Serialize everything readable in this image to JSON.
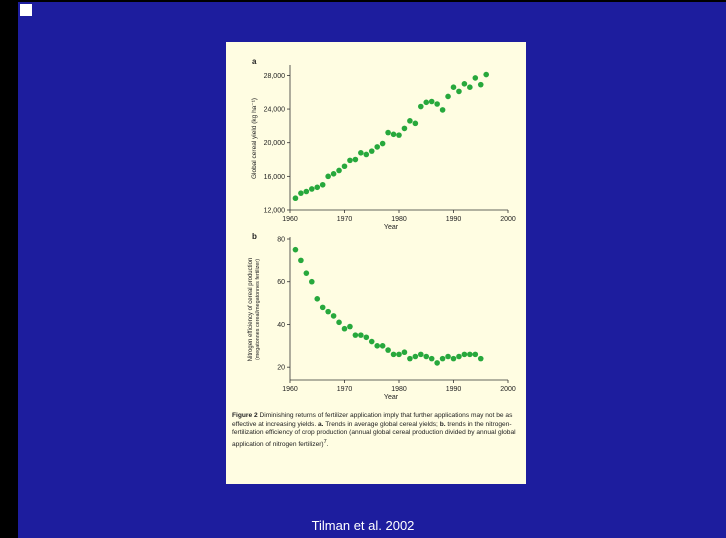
{
  "slide": {
    "credit": "Tilman et al. 2002"
  },
  "caption": {
    "figure_label": "Figure 2",
    "text_1": " Diminishing returns of fertilizer application imply that further applications may not be as effective at increasing yields. ",
    "label_a": "a.",
    "text_2": " Trends in average global cereal yields; ",
    "label_b": "b.",
    "text_3": " trends in the nitrogen-fertilization efficiency of crop production (annual global cereal production divided by annual global application of nitrogen fertilizer)",
    "superscript": "7",
    "text_end": "."
  },
  "colors": {
    "slide_background": "#1d1d9e",
    "figure_background": "#fffde2",
    "points": "#27a83c",
    "text": "#ffffff"
  },
  "chart_data": [
    {
      "type": "scatter",
      "panel": "a",
      "xlabel": "Year",
      "ylabel": "Global cereal yield (kg ha⁻¹)",
      "xlim": [
        1960,
        2000
      ],
      "ylim": [
        12000,
        29000
      ],
      "xticks": [
        "1960",
        "1970",
        "1980",
        "1990",
        "2000"
      ],
      "yticks": [
        {
          "value": 12000,
          "label": "12,000"
        },
        {
          "value": 16000,
          "label": "16,000"
        },
        {
          "value": 20000,
          "label": "20,000"
        },
        {
          "value": 24000,
          "label": "24,000"
        },
        {
          "value": 28000,
          "label": "28,000"
        }
      ],
      "x": [
        1961,
        1962,
        1963,
        1964,
        1965,
        1966,
        1967,
        1968,
        1969,
        1970,
        1971,
        1972,
        1973,
        1974,
        1975,
        1976,
        1977,
        1978,
        1979,
        1980,
        1981,
        1982,
        1983,
        1984,
        1985,
        1986,
        1987,
        1988,
        1989,
        1990,
        1991,
        1992,
        1993,
        1994,
        1995,
        1996
      ],
      "y": [
        13400,
        14000,
        14200,
        14500,
        14700,
        15000,
        16000,
        16300,
        16700,
        17200,
        17900,
        18000,
        18800,
        18600,
        19000,
        19500,
        19900,
        21200,
        21000,
        20900,
        21700,
        22600,
        22300,
        24300,
        24800,
        24900,
        24600,
        23900,
        25500,
        26600,
        26100,
        27000,
        26600,
        27700,
        26900,
        28100
      ]
    },
    {
      "type": "scatter",
      "panel": "b",
      "xlabel": "Year",
      "ylabel": "Nitrogen efficiency of cereal production (megatonnes cereal/megatonnes fertilizer)",
      "xlim": [
        1960,
        2000
      ],
      "ylim": [
        14,
        80
      ],
      "xticks": [
        "1960",
        "1970",
        "1980",
        "1990",
        "2000"
      ],
      "yticks": [
        {
          "value": 20,
          "label": "20"
        },
        {
          "value": 40,
          "label": "40"
        },
        {
          "value": 60,
          "label": "60"
        },
        {
          "value": 80,
          "label": "80"
        }
      ],
      "x": [
        1961,
        1962,
        1963,
        1964,
        1965,
        1966,
        1967,
        1968,
        1969,
        1970,
        1971,
        1972,
        1973,
        1974,
        1975,
        1976,
        1977,
        1978,
        1979,
        1980,
        1981,
        1982,
        1983,
        1984,
        1985,
        1986,
        1987,
        1988,
        1989,
        1990,
        1991,
        1992,
        1993,
        1994,
        1995
      ],
      "y": [
        75,
        70,
        64,
        60,
        52,
        48,
        46,
        44,
        41,
        38,
        39,
        35,
        35,
        34,
        32,
        30,
        30,
        28,
        26,
        26,
        27,
        24,
        25,
        26,
        25,
        24,
        22,
        24,
        25,
        24,
        25,
        26,
        26,
        26,
        24
      ]
    }
  ]
}
